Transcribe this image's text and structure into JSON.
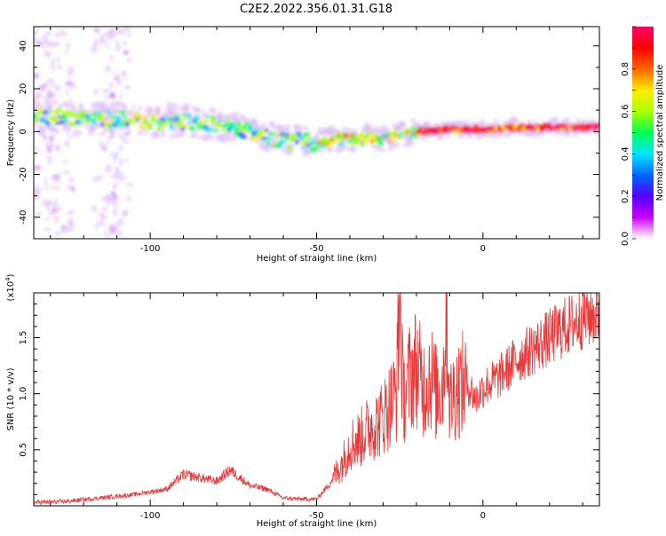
{
  "chart_data": [
    {
      "type": "heatmap",
      "title": "C2E2.2022.356.01.31.G18",
      "xlabel": "Height of straight line (km)",
      "ylabel": "Frequency (Hz)",
      "xlim": [
        -135,
        35
      ],
      "ylim": [
        -50,
        49
      ],
      "x_ticks": [
        -100,
        -50,
        0
      ],
      "y_ticks": [
        -40,
        -20,
        0,
        20,
        40
      ],
      "colorbar": {
        "label": "Normalized spectral amplitude",
        "range": [
          0,
          1
        ],
        "ticks": [
          0.0,
          0.2,
          0.4,
          0.6,
          0.8
        ],
        "colors": [
          "#ffffff",
          "#cc00ff",
          "#5500ff",
          "#0066ff",
          "#00e6ff",
          "#00ff55",
          "#aaff00",
          "#ffee00",
          "#ff6600",
          "#ff0000",
          "#ff0066"
        ]
      },
      "ridge": {
        "x": [
          -135,
          -120,
          -100,
          -90,
          -80,
          -70,
          -60,
          -50,
          -40,
          -30,
          -20,
          -10,
          0,
          10,
          20,
          35
        ],
        "frequency": [
          8,
          6,
          5,
          5,
          3,
          0,
          -4,
          -5,
          -3,
          -3,
          0,
          1,
          1,
          2,
          2,
          2
        ]
      }
    },
    {
      "type": "line",
      "xlabel": "Height of straight line (km)",
      "ylabel": "SNR (10 * v/v)",
      "y_multiplier": "(x10",
      "y_multiplier_exp": "4",
      "y_multiplier_close": ")",
      "xlim": [
        -135,
        35
      ],
      "ylim": [
        0,
        1.9
      ],
      "x_ticks": [
        -100,
        -50,
        0
      ],
      "y_ticks": [
        0.5,
        1.0,
        1.5
      ],
      "line_color": "#e8393a",
      "series": [
        {
          "x": [
            -135,
            -125,
            -115,
            -105,
            -95,
            -90,
            -85,
            -80,
            -76,
            -70,
            -65,
            -60,
            -55,
            -50,
            -46,
            -42,
            -40,
            -37,
            -34,
            -31,
            -28,
            -26,
            -25,
            -24,
            -22,
            -20,
            -18,
            -16,
            -14,
            -12,
            -11,
            -10,
            -8,
            -5,
            -2,
            0,
            5,
            10,
            15,
            20,
            25,
            30,
            35
          ],
          "values": [
            0.03,
            0.04,
            0.07,
            0.1,
            0.15,
            0.28,
            0.25,
            0.22,
            0.32,
            0.18,
            0.15,
            0.07,
            0.06,
            0.06,
            0.2,
            0.4,
            0.55,
            0.6,
            0.7,
            0.75,
            0.9,
            1.0,
            1.9,
            0.95,
            1.15,
            1.25,
            1.05,
            1.2,
            1.0,
            1.1,
            1.85,
            0.9,
            1.05,
            1.1,
            0.95,
            1.05,
            1.15,
            1.3,
            1.4,
            1.5,
            1.6,
            1.68,
            1.72
          ]
        }
      ]
    }
  ]
}
